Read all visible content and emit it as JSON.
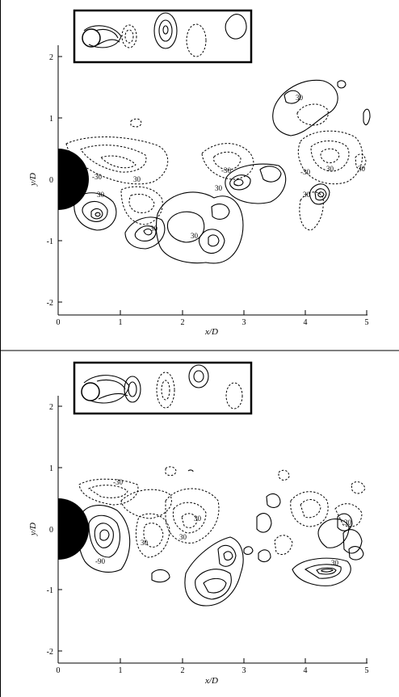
{
  "panels": [
    {
      "xlabel": "x/D",
      "ylabel": "y/D",
      "xticks": [
        "0",
        "1",
        "2",
        "3",
        "4",
        "5"
      ],
      "yticks": [
        "2",
        "1",
        "0",
        "-1",
        "-2"
      ],
      "contour_labels": [
        "30",
        "30",
        "-30",
        "30",
        "30",
        "30",
        "-30",
        "30",
        "-30",
        "30",
        "30",
        "30"
      ]
    },
    {
      "xlabel": "x/D",
      "ylabel": "y/D",
      "xticks": [
        "0",
        "1",
        "2",
        "3",
        "4",
        "5"
      ],
      "yticks": [
        "2",
        "1",
        "0",
        "-1",
        "-2"
      ],
      "contour_labels": [
        "-30",
        "30",
        "30",
        "30",
        "-90",
        "30",
        "30"
      ]
    }
  ],
  "chart_data": [
    {
      "type": "contour",
      "xlabel": "x/D",
      "ylabel": "y/D",
      "xlim": [
        0,
        5
      ],
      "ylim": [
        -2.2,
        2.2
      ],
      "xticks": [
        0,
        1,
        2,
        3,
        4,
        5
      ],
      "yticks": [
        -2,
        -1,
        0,
        1,
        2
      ],
      "cylinder": {
        "center": [
          0,
          0
        ],
        "diameter": 1
      },
      "line_styles": [
        "solid",
        "dashed"
      ],
      "contour_labels": [
        "30",
        "-30"
      ]
    },
    {
      "type": "contour",
      "xlabel": "x/D",
      "ylabel": "y/D",
      "xlim": [
        0,
        5
      ],
      "ylim": [
        -2.2,
        2.2
      ],
      "xticks": [
        0,
        1,
        2,
        3,
        4,
        5
      ],
      "yticks": [
        -2,
        -1,
        0,
        1,
        2
      ],
      "cylinder": {
        "center": [
          0,
          0
        ],
        "diameter": 1
      },
      "line_styles": [
        "solid",
        "dashed"
      ],
      "contour_labels": [
        "30",
        "-30",
        "-90"
      ]
    }
  ]
}
